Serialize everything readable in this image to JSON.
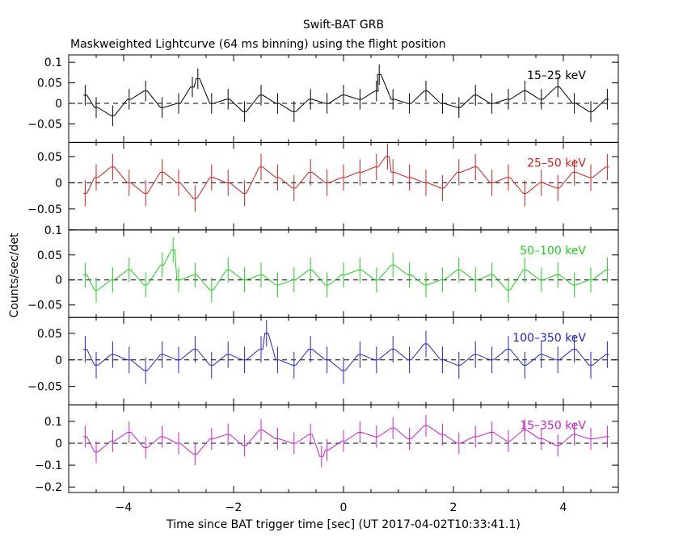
{
  "chart_data": {
    "type": "line",
    "title": "Swift-BAT GRB",
    "subtitle": "Maskweighted Lightcurve (64 ms binning) using the flight position",
    "xlabel": "Time since BAT trigger time [sec] (UT 2017-04-02T10:33:41.1)",
    "ylabel": "Counts/sec/det",
    "xlim": [
      -5.0,
      5.0
    ],
    "x_ticks": [
      -4,
      -2,
      0,
      2,
      4
    ],
    "x_tick_labels": [
      "−4",
      "−2",
      "0",
      "2",
      "4"
    ],
    "bin_width_sec": 0.064,
    "dashed_zero_line": true,
    "panels": [
      {
        "name": "15–25 keV",
        "color": "#000000",
        "ylim": [
          -0.095,
          0.118
        ],
        "y_ticks": [
          0.1,
          0.05,
          0,
          -0.05
        ],
        "y_tick_labels": [
          "0.1",
          "0.05",
          "0",
          "−0.05"
        ],
        "x": [
          -4.7,
          -4.5,
          -4.2,
          -3.9,
          -3.6,
          -3.3,
          -3.0,
          -2.75,
          -2.65,
          -2.4,
          -2.1,
          -1.8,
          -1.5,
          -1.2,
          -0.9,
          -0.6,
          -0.3,
          0.0,
          0.3,
          0.6,
          0.65,
          0.9,
          1.2,
          1.5,
          1.8,
          2.1,
          2.4,
          2.7,
          3.0,
          3.3,
          3.6,
          3.9,
          4.2,
          4.5,
          4.8
        ],
        "y": [
          0.02,
          -0.01,
          -0.03,
          0.01,
          0.03,
          -0.01,
          0.0,
          0.04,
          0.06,
          0.0,
          0.01,
          -0.02,
          0.02,
          0.0,
          -0.02,
          0.01,
          0.0,
          0.02,
          0.01,
          0.03,
          0.07,
          0.01,
          0.0,
          0.03,
          0.0,
          -0.01,
          0.02,
          0.0,
          0.01,
          0.03,
          0.01,
          0.04,
          0.0,
          -0.02,
          0.01
        ],
        "error": 0.025
      },
      {
        "name": "25–50 keV",
        "color": "#cc2222",
        "ylim": [
          -0.09,
          0.077
        ],
        "y_ticks": [
          0.05,
          0,
          -0.05
        ],
        "y_tick_labels": [
          "0.05",
          "0",
          "−0.05"
        ],
        "x": [
          -4.7,
          -4.5,
          -4.2,
          -3.9,
          -3.6,
          -3.3,
          -3.0,
          -2.7,
          -2.4,
          -2.1,
          -1.8,
          -1.5,
          -1.2,
          -0.9,
          -0.6,
          -0.3,
          0.0,
          0.3,
          0.6,
          0.8,
          0.9,
          1.2,
          1.5,
          1.8,
          2.1,
          2.4,
          2.7,
          3.0,
          3.3,
          3.6,
          3.9,
          4.2,
          4.5,
          4.8
        ],
        "y": [
          -0.02,
          0.01,
          0.03,
          0.0,
          -0.02,
          0.02,
          0.0,
          -0.03,
          0.01,
          0.0,
          -0.02,
          0.03,
          0.01,
          -0.01,
          0.02,
          0.0,
          0.01,
          0.02,
          0.03,
          0.05,
          0.02,
          0.01,
          0.0,
          -0.01,
          0.02,
          0.03,
          0.0,
          0.01,
          -0.02,
          0.0,
          -0.01,
          0.02,
          0.01,
          0.03
        ],
        "error": 0.025
      },
      {
        "name": "50–100 keV",
        "color": "#22cc22",
        "ylim": [
          -0.075,
          0.1
        ],
        "y_ticks": [
          0.1,
          0.05,
          0,
          -0.05
        ],
        "y_tick_labels": [
          "0.1",
          "0.05",
          "0",
          "−0.05"
        ],
        "x": [
          -4.7,
          -4.5,
          -4.2,
          -3.9,
          -3.6,
          -3.3,
          -3.1,
          -3.0,
          -2.7,
          -2.4,
          -2.1,
          -1.8,
          -1.5,
          -1.2,
          -0.9,
          -0.6,
          -0.3,
          0.0,
          0.3,
          0.6,
          0.9,
          1.2,
          1.5,
          1.8,
          2.1,
          2.4,
          2.7,
          3.0,
          3.3,
          3.6,
          3.9,
          4.2,
          4.5,
          4.8
        ],
        "y": [
          0.01,
          -0.02,
          0.0,
          0.02,
          -0.01,
          0.03,
          0.06,
          0.0,
          0.01,
          -0.02,
          0.02,
          0.0,
          0.01,
          -0.01,
          0.0,
          0.02,
          -0.01,
          0.01,
          0.02,
          0.0,
          0.03,
          0.01,
          -0.01,
          0.0,
          0.02,
          0.0,
          0.01,
          -0.02,
          0.02,
          0.0,
          0.01,
          -0.01,
          0.0,
          0.02
        ],
        "error": 0.025
      },
      {
        "name": "100–350 keV",
        "color": "#2222cc",
        "ylim": [
          -0.085,
          0.08
        ],
        "y_ticks": [
          0.05,
          0,
          -0.05
        ],
        "y_tick_labels": [
          "0.05",
          "0",
          "−0.05"
        ],
        "x": [
          -4.7,
          -4.5,
          -4.2,
          -3.9,
          -3.6,
          -3.3,
          -3.0,
          -2.7,
          -2.4,
          -2.1,
          -1.8,
          -1.5,
          -1.4,
          -1.2,
          -0.9,
          -0.6,
          -0.3,
          0.0,
          0.3,
          0.6,
          0.9,
          1.2,
          1.5,
          1.8,
          2.1,
          2.4,
          2.7,
          3.0,
          3.3,
          3.6,
          3.9,
          4.2,
          4.5,
          4.8
        ],
        "y": [
          0.02,
          -0.01,
          0.01,
          0.0,
          -0.02,
          0.01,
          0.0,
          0.02,
          -0.01,
          0.01,
          0.0,
          0.02,
          0.05,
          0.0,
          -0.01,
          0.02,
          0.0,
          -0.02,
          0.01,
          0.0,
          0.02,
          0.0,
          0.03,
          0.0,
          -0.01,
          0.01,
          0.0,
          0.02,
          -0.01,
          0.01,
          0.0,
          0.02,
          -0.01,
          0.01
        ],
        "error": 0.025
      },
      {
        "name": "15–350 keV",
        "color": "#cc22cc",
        "ylim": [
          -0.225,
          0.175
        ],
        "y_ticks": [
          0.1,
          0,
          -0.1,
          -0.2
        ],
        "y_tick_labels": [
          "0.1",
          "0",
          "−0.1",
          "−0.2"
        ],
        "x": [
          -4.7,
          -4.5,
          -4.2,
          -3.9,
          -3.6,
          -3.3,
          -3.0,
          -2.7,
          -2.4,
          -2.1,
          -1.8,
          -1.5,
          -1.2,
          -0.9,
          -0.6,
          -0.4,
          -0.3,
          0.0,
          0.3,
          0.6,
          0.9,
          1.2,
          1.5,
          1.8,
          2.1,
          2.4,
          2.7,
          3.0,
          3.3,
          3.6,
          3.9,
          4.2,
          4.5,
          4.8
        ],
        "y": [
          0.03,
          -0.04,
          0.01,
          0.05,
          -0.02,
          0.03,
          0.0,
          -0.05,
          0.02,
          0.04,
          -0.01,
          0.06,
          0.02,
          0.0,
          0.04,
          -0.06,
          -0.03,
          0.01,
          0.05,
          0.03,
          0.07,
          0.02,
          0.08,
          0.04,
          0.0,
          0.03,
          0.05,
          0.01,
          0.06,
          0.02,
          -0.01,
          0.04,
          0.02,
          0.03
        ],
        "error": 0.05
      }
    ]
  }
}
